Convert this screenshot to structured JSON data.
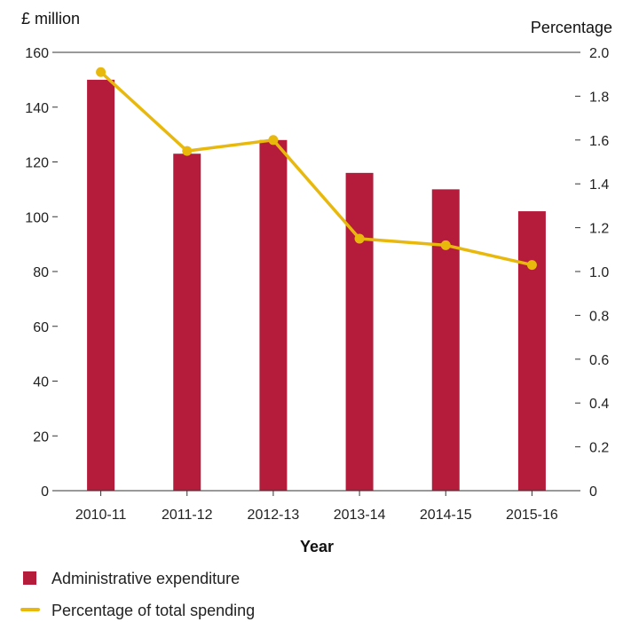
{
  "chart_data": {
    "type": "bar",
    "categories": [
      "2010-11",
      "2011-12",
      "2012-13",
      "2013-14",
      "2014-15",
      "2015-16"
    ],
    "series": [
      {
        "name": "Administrative expenditure",
        "type": "bar",
        "axis": "left",
        "values": [
          150,
          123,
          128,
          116,
          110,
          102
        ]
      },
      {
        "name": "Percentage of total spending",
        "type": "line",
        "axis": "right",
        "values": [
          1.91,
          1.55,
          1.6,
          1.15,
          1.12,
          1.03
        ]
      }
    ],
    "title": "",
    "xlabel": "Year",
    "ylabel_left": "£ million",
    "ylabel_right": "Percentage",
    "ylim_left": [
      0,
      160
    ],
    "ylim_right": [
      0,
      2.0
    ],
    "yticks_left": [
      "0",
      "20",
      "40",
      "60",
      "80",
      "100",
      "120",
      "140",
      "160"
    ],
    "yticks_right": [
      "0",
      "0.2",
      "0.4",
      "0.6",
      "0.8",
      "1.0",
      "1.2",
      "1.4",
      "1.6",
      "1.8",
      "2.0"
    ],
    "grid": false,
    "legend": "bottom-left",
    "colors": {
      "bar": "#b51c3c",
      "line": "#e8b90c",
      "axis": "#333333"
    }
  }
}
